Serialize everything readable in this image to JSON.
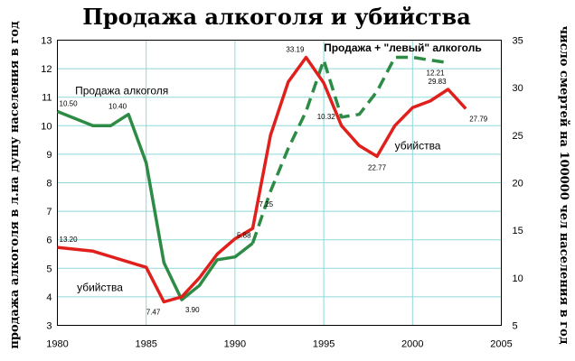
{
  "chart_data": {
    "type": "line",
    "title": "Продажа алкоголя и убийства",
    "ylabel_left": "продажа алкоголя в л.на душу населения в год",
    "ylabel_right": "число смертей на 100000 чел населения в год",
    "xlim": [
      1980,
      2005
    ],
    "ylim_left": [
      3,
      13
    ],
    "ylim_right": [
      5,
      35
    ],
    "x_ticks": [
      1980,
      1985,
      1990,
      1995,
      2000,
      2005
    ],
    "y_left_ticks": [
      3,
      4,
      5,
      6,
      7,
      8,
      9,
      10,
      11,
      12,
      13
    ],
    "y_right_ticks": [
      5,
      10,
      15,
      20,
      25,
      30,
      35
    ],
    "grid": true,
    "series": [
      {
        "name": "Продажа алкоголя",
        "axis": "left",
        "color": "#2e8b45",
        "style": "solid",
        "points": [
          [
            1980,
            10.5
          ],
          [
            1982,
            10.0
          ],
          [
            1983,
            10.0
          ],
          [
            1984,
            10.4
          ],
          [
            1985,
            8.7
          ],
          [
            1986,
            5.2
          ],
          [
            1987,
            3.9
          ],
          [
            1988,
            4.4
          ],
          [
            1989,
            5.3
          ],
          [
            1990,
            5.4
          ],
          [
            1991,
            5.88
          ]
        ]
      },
      {
        "name": "Продажа + \"левый\" алкоголь",
        "axis": "left",
        "color": "#2e8b45",
        "style": "dashed",
        "points": [
          [
            1991,
            5.88
          ],
          [
            1992,
            7.7
          ],
          [
            1993,
            9.2
          ],
          [
            1994,
            10.5
          ],
          [
            1995,
            12.3
          ],
          [
            1996,
            10.3
          ],
          [
            1997,
            10.4
          ],
          [
            1998,
            11.2
          ],
          [
            1999,
            12.4
          ],
          [
            2000,
            12.4
          ],
          [
            2001,
            12.3
          ],
          [
            2002,
            12.21
          ]
        ]
      },
      {
        "name": "убийства",
        "axis": "right",
        "color": "#e0201c",
        "style": "solid",
        "points": [
          [
            1980,
            13.2
          ],
          [
            1982,
            12.8
          ],
          [
            1985,
            11.1
          ],
          [
            1986,
            7.47
          ],
          [
            1987,
            8.0
          ],
          [
            1988,
            10.0
          ],
          [
            1989,
            12.5
          ],
          [
            1990,
            14.1
          ],
          [
            1991,
            15.2
          ],
          [
            1992,
            25.0
          ],
          [
            1993,
            30.6
          ],
          [
            1994,
            33.19
          ],
          [
            1995,
            30.5
          ],
          [
            1996,
            26.0
          ],
          [
            1997,
            23.9
          ],
          [
            1998,
            22.77
          ],
          [
            1999,
            26.0
          ],
          [
            2000,
            27.9
          ],
          [
            2001,
            28.6
          ],
          [
            2002,
            29.83
          ],
          [
            2003,
            27.79
          ]
        ]
      }
    ],
    "data_labels": [
      {
        "x": 1980,
        "y": 10.5,
        "axis": "left",
        "text": "10.50",
        "pos": "above-right"
      },
      {
        "x": 1984,
        "y": 10.4,
        "axis": "left",
        "text": "10.40",
        "pos": "above-left"
      },
      {
        "x": 1987,
        "y": 3.9,
        "axis": "left",
        "text": "3.90",
        "pos": "below-right"
      },
      {
        "x": 1991,
        "y": 5.88,
        "axis": "left",
        "text": "5.88",
        "pos": "above-left"
      },
      {
        "x": 1991,
        "y": 7.25,
        "axis": "left",
        "text": "7.25",
        "pos": "right"
      },
      {
        "x": 1996,
        "y": 10.32,
        "axis": "left",
        "text": "10.32",
        "pos": "left"
      },
      {
        "x": 2002,
        "y": 12.21,
        "axis": "left",
        "text": "12.21",
        "pos": "below-left"
      },
      {
        "x": 1980,
        "y": 13.2,
        "axis": "right",
        "text": "13.20",
        "pos": "above-right"
      },
      {
        "x": 1986,
        "y": 7.47,
        "axis": "right",
        "text": "7.47",
        "pos": "below-left"
      },
      {
        "x": 1994,
        "y": 33.19,
        "axis": "right",
        "text": "33.19",
        "pos": "above-left"
      },
      {
        "x": 1998,
        "y": 22.77,
        "axis": "right",
        "text": "22.77",
        "pos": "below"
      },
      {
        "x": 2002,
        "y": 29.83,
        "axis": "right",
        "text": "29.83",
        "pos": "above-left"
      },
      {
        "x": 2003,
        "y": 27.79,
        "axis": "right",
        "text": "27.79",
        "pos": "below-right"
      }
    ],
    "annotations": [
      {
        "text": "Продажа алкоголя",
        "x": 1981,
        "y": 11.1,
        "axis": "left",
        "bold": false
      },
      {
        "text": "Продажа + \"левый\" алкоголь",
        "x": 1995,
        "y": 12.6,
        "axis": "left",
        "bold": true
      },
      {
        "text": "убийства",
        "x": 1981.1,
        "y": 8.6,
        "axis": "right",
        "bold": false
      },
      {
        "text": "убийства",
        "x": 1999,
        "y": 23.5,
        "axis": "right",
        "bold": false
      }
    ]
  }
}
